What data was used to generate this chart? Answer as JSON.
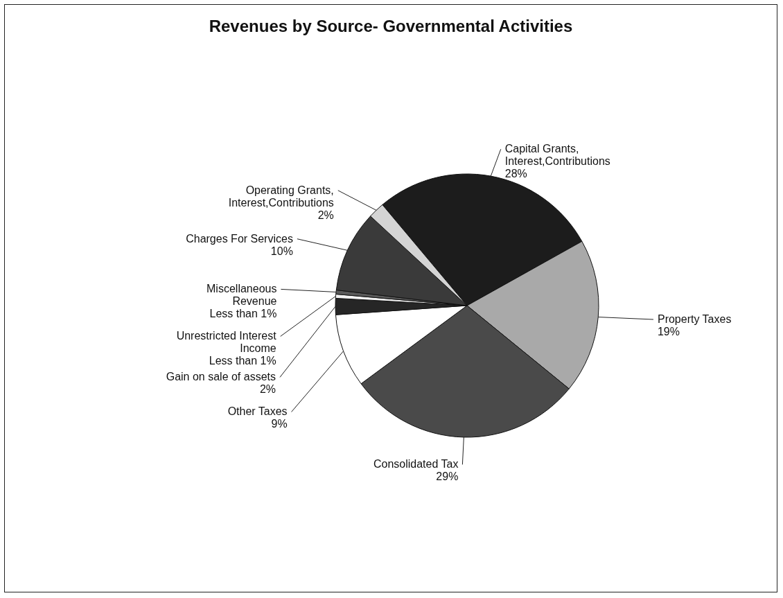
{
  "chart_data": {
    "type": "pie",
    "title": "Revenues by Source- Governmental Activities",
    "categories": [
      "Capital Grants,\nInterest,Contributions",
      "Property Taxes",
      "Consolidated Tax",
      "Other Taxes",
      "Gain on sale of assets",
      "Unrestricted Interest\nIncome",
      "Miscellaneous\nRevenue",
      "Charges For Services",
      "Operating Grants,\nInterest,Contributions"
    ],
    "values": [
      28,
      19,
      29,
      9,
      2,
      0.5,
      0.5,
      10,
      2
    ],
    "value_labels": [
      "28%",
      "19%",
      "29%",
      "9%",
      "2%",
      "Less than 1%",
      "Less than 1%",
      "10%",
      "2%"
    ],
    "colors": [
      "#1c1c1c",
      "#a9a9a9",
      "#4a4a4a",
      "#ffffff",
      "#262626",
      "#f2f2f2",
      "#5a5a5a",
      "#3a3a3a",
      "#d4d4d4"
    ]
  }
}
